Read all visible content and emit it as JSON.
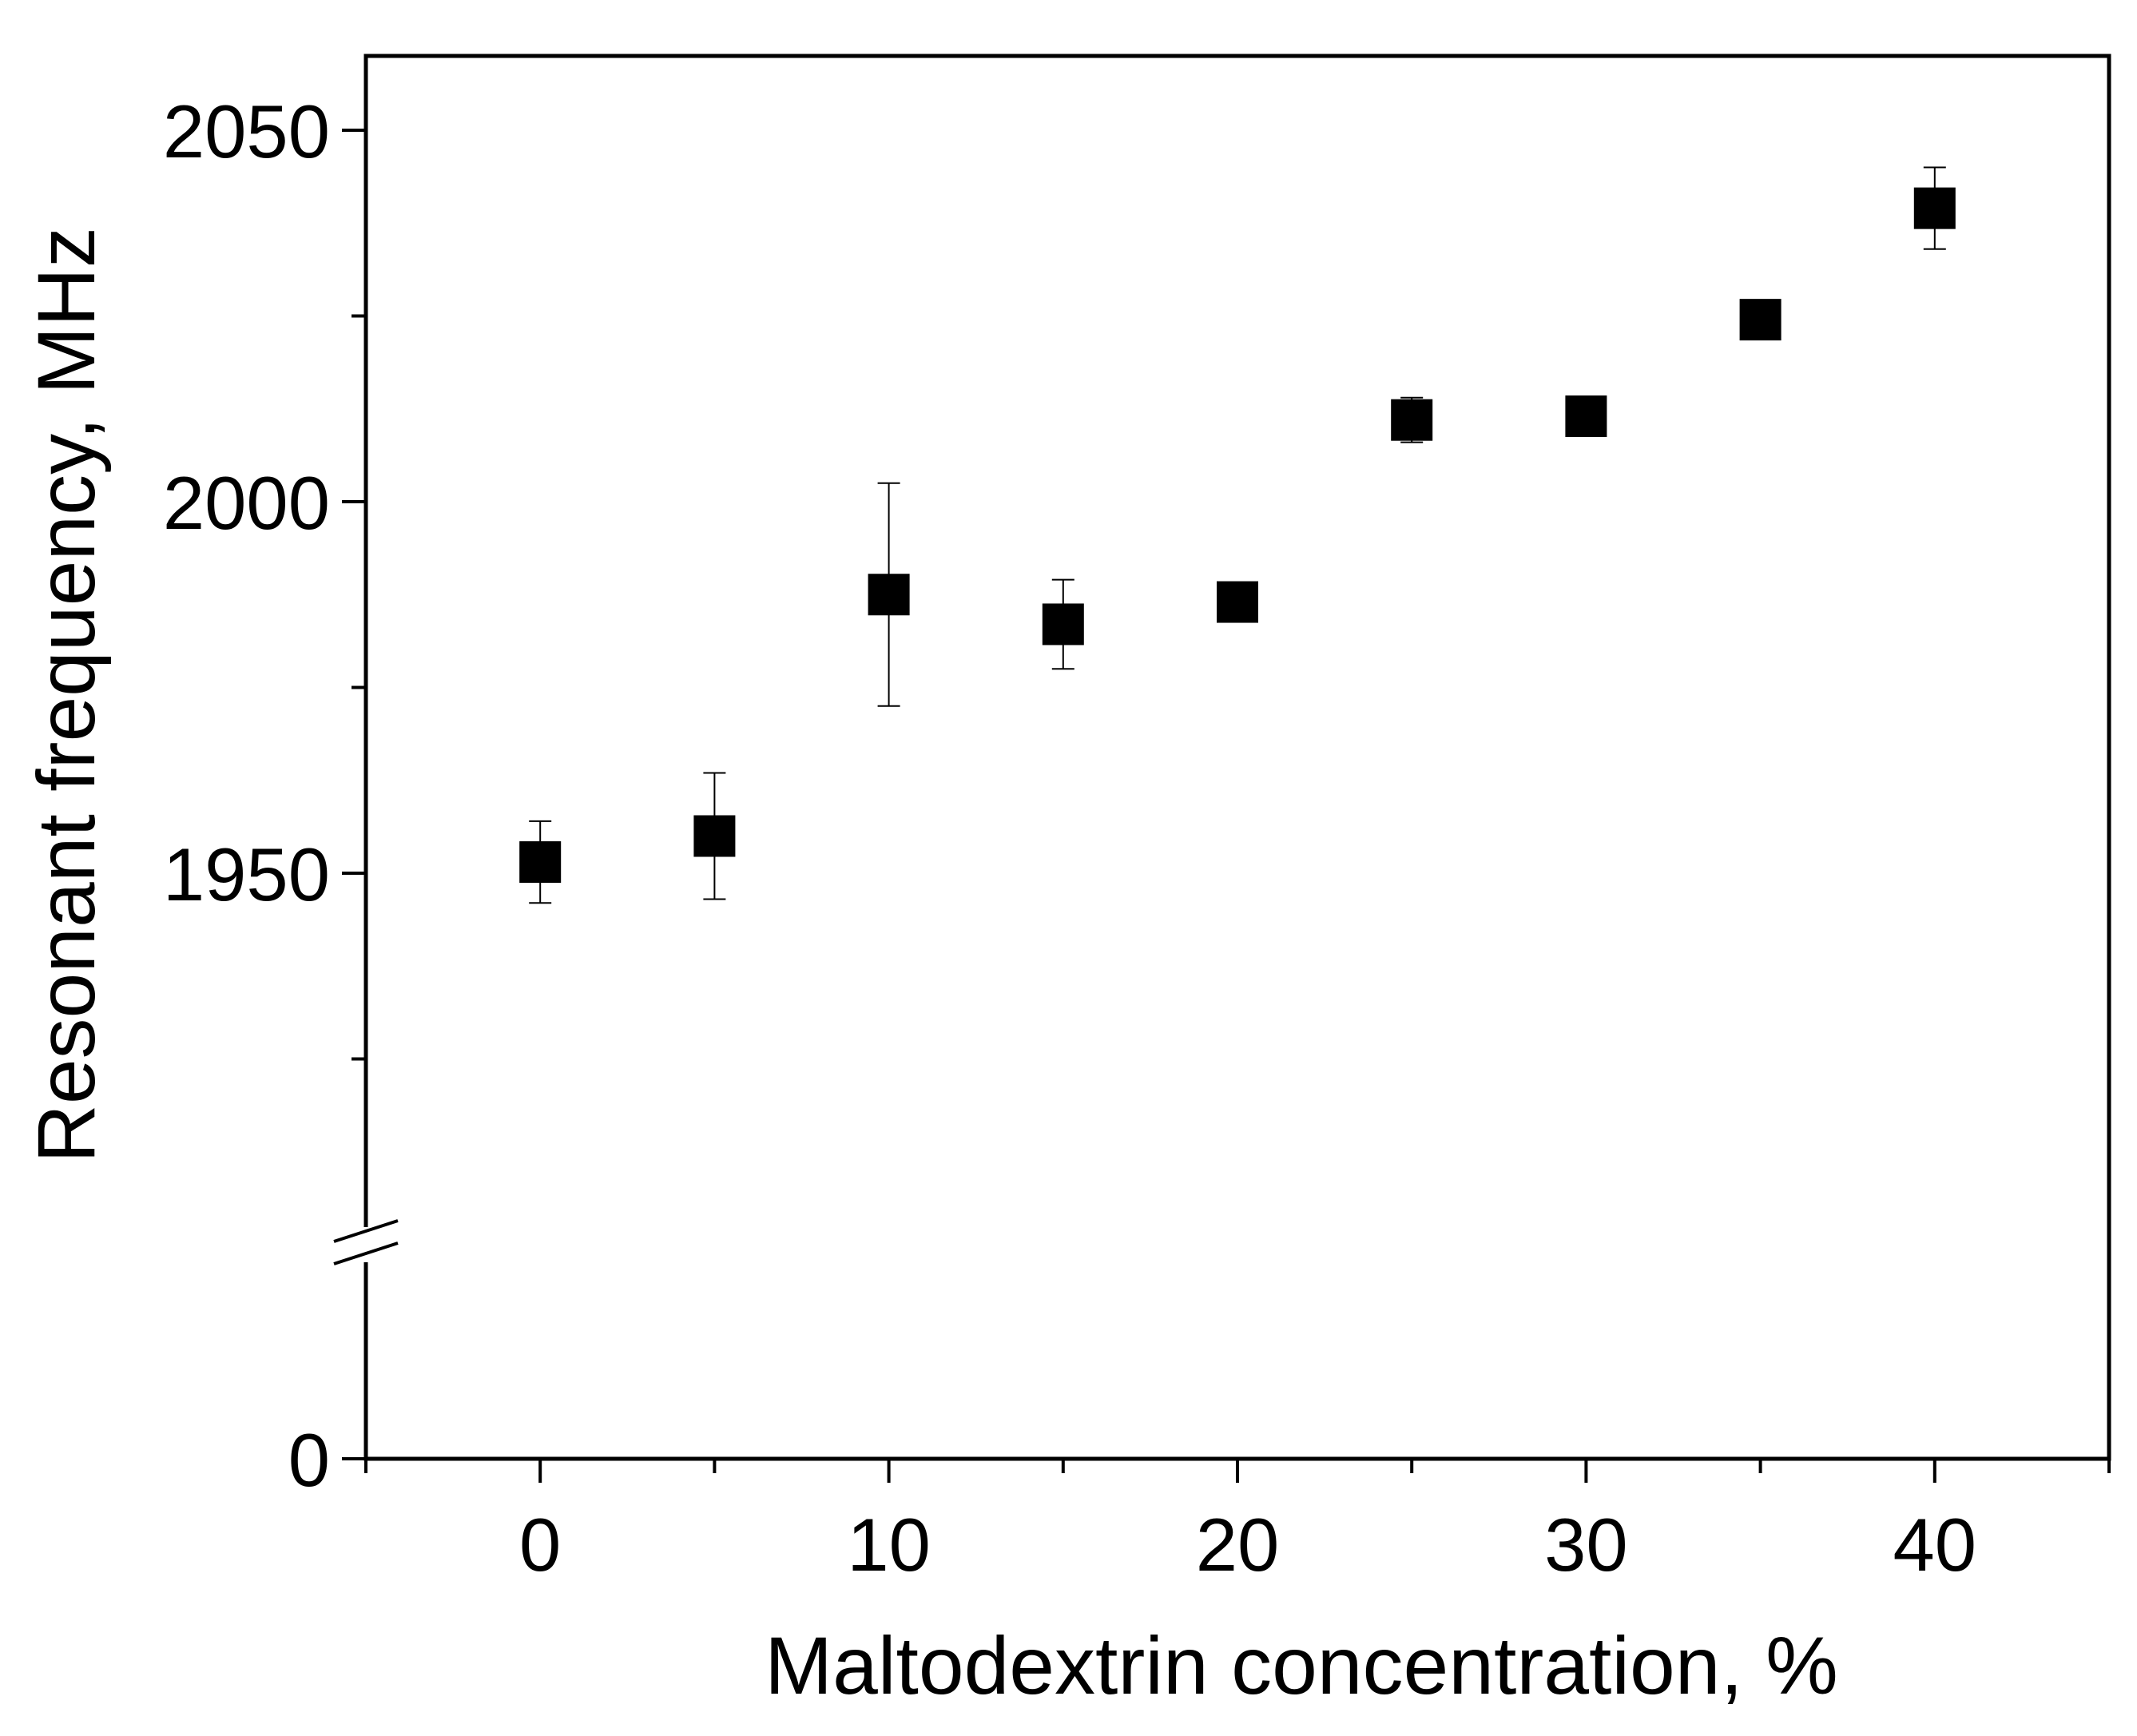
{
  "chart_data": {
    "type": "scatter",
    "title": "",
    "xlabel": "Maltodextrin concentration, %",
    "ylabel": "Resonant frequency, MHz",
    "xlim": [
      -5,
      45
    ],
    "x_ticks": [
      0,
      10,
      20,
      30,
      40
    ],
    "x_minor_ticks": [
      -5,
      5,
      15,
      25,
      35,
      45
    ],
    "y_axis_break": {
      "below": [
        0,
        1900
      ],
      "above": [
        1900,
        2060
      ]
    },
    "y_ticks": [
      0,
      1950,
      2000,
      2050
    ],
    "y_minor_ticks": [
      1925,
      1975,
      2025,
      1840,
      1880
    ],
    "marker": "filled-square",
    "color": "#000000",
    "series": [
      {
        "name": "Resonant frequency",
        "x": [
          0,
          5,
          10,
          15,
          20,
          25,
          30,
          35,
          40
        ],
        "y": [
          1951.5,
          1955,
          1987.5,
          1983.5,
          1986.5,
          2011,
          2011.5,
          2024.5,
          2039.5
        ],
        "error": [
          5.5,
          8.5,
          15,
          6,
          2,
          3,
          2,
          2,
          5.5
        ]
      }
    ]
  }
}
